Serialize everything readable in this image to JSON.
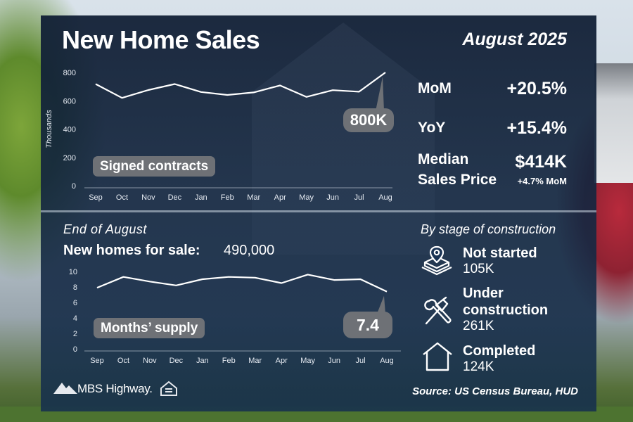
{
  "header": {
    "title": "New Home Sales",
    "date": "August 2025"
  },
  "chart_data": [
    {
      "type": "line",
      "categories": [
        "Sep",
        "Oct",
        "Nov",
        "Dec",
        "Jan",
        "Feb",
        "Mar",
        "Apr",
        "May",
        "Jun",
        "Jul",
        "Aug"
      ],
      "values": [
        718,
        620,
        676,
        718,
        662,
        641,
        659,
        708,
        627,
        675,
        664,
        800
      ],
      "ylabel": "Thousands",
      "ylim": [
        0,
        800
      ],
      "yticks": [
        "0",
        "200",
        "400",
        "600",
        "800"
      ],
      "label": "Signed contracts",
      "callout": "800K",
      "grid": false
    },
    {
      "type": "line",
      "categories": [
        "Sep",
        "Oct",
        "Nov",
        "Dec",
        "Jan",
        "Feb",
        "Mar",
        "Apr",
        "May",
        "Jun",
        "Jul",
        "Aug"
      ],
      "values": [
        7.9,
        9.3,
        8.7,
        8.2,
        9.0,
        9.3,
        9.2,
        8.5,
        9.6,
        8.9,
        9.0,
        7.4
      ],
      "ylim": [
        0,
        10
      ],
      "yticks": [
        "0",
        "2",
        "4",
        "6",
        "8",
        "10"
      ],
      "label": "Months’ supply",
      "callout": "7.4",
      "grid": false
    }
  ],
  "stats": {
    "mom_label": "MoM",
    "mom_value": "+20.5%",
    "yoy_label": "YoY",
    "yoy_value": "+15.4%",
    "median_label_1": "Median",
    "median_label_2": "Sales Price",
    "median_value": "$414K",
    "median_note": "+4.7% MoM"
  },
  "inventory": {
    "period": "End of August",
    "label": "New homes for sale:",
    "value": "490,000"
  },
  "stages": {
    "title": "By stage of construction",
    "items": [
      {
        "name": "Not started",
        "value": "105K",
        "icon": "location-pin-foundation-icon"
      },
      {
        "name_1": "Under",
        "name_2": "construction",
        "value": "261K",
        "icon": "hammer-wrench-icon"
      },
      {
        "name": "Completed",
        "value": "124K",
        "icon": "house-outline-icon"
      }
    ]
  },
  "footer": {
    "brand": "MBS Highway.",
    "source": "Source: US Census Bureau, HUD"
  },
  "colors": {
    "panel": "#14243c",
    "callout": "#6e7176",
    "line": "#ffffff"
  }
}
